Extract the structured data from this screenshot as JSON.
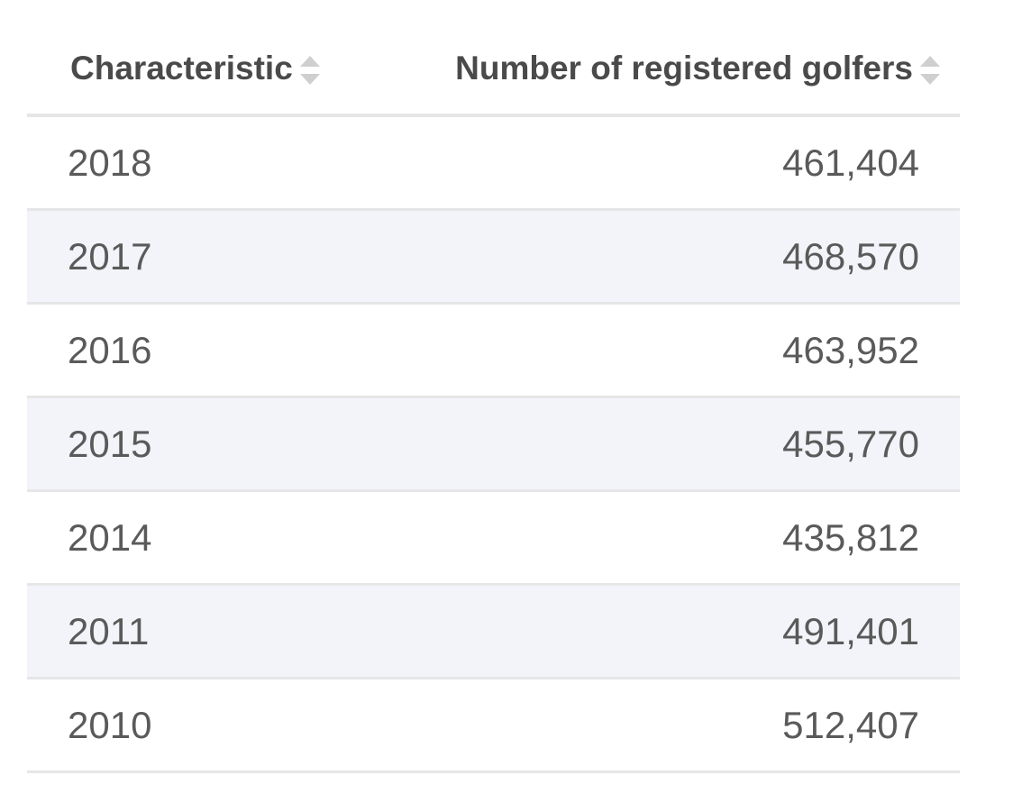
{
  "chart_data": {
    "type": "table",
    "columns": [
      "Characteristic",
      "Number of registered golfers"
    ],
    "rows": [
      {
        "year": "2018",
        "value": "461,404"
      },
      {
        "year": "2017",
        "value": "468,570"
      },
      {
        "year": "2016",
        "value": "463,952"
      },
      {
        "year": "2015",
        "value": "455,770"
      },
      {
        "year": "2014",
        "value": "435,812"
      },
      {
        "year": "2011",
        "value": "491,401"
      },
      {
        "year": "2010",
        "value": "512,407"
      }
    ]
  },
  "icons": {
    "sort": "sort-icon"
  },
  "colors": {
    "header_text": "#4a4a4a",
    "body_text": "#5a5a5a",
    "stripe": "#f2f4f9",
    "border": "#e6e6e6"
  }
}
